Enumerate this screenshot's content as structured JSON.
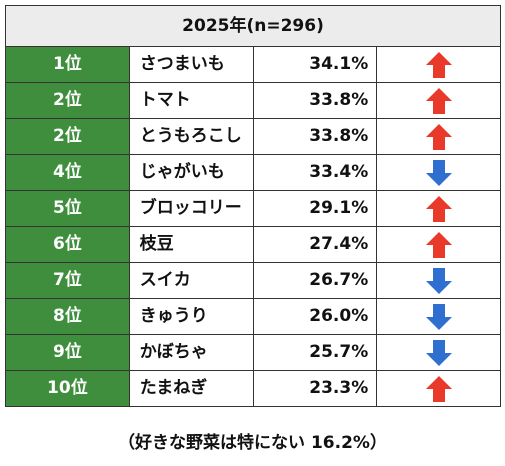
{
  "table": {
    "header": "2025年(n=296)",
    "rows": [
      {
        "rank": "1位",
        "name": "さつまいも",
        "percent": "34.1%",
        "trend": "up"
      },
      {
        "rank": "2位",
        "name": "トマト",
        "percent": "33.8%",
        "trend": "up"
      },
      {
        "rank": "2位",
        "name": "とうもろこし",
        "percent": "33.8%",
        "trend": "up"
      },
      {
        "rank": "4位",
        "name": "じゃがいも",
        "percent": "33.4%",
        "trend": "down"
      },
      {
        "rank": "5位",
        "name": "ブロッコリー",
        "percent": "29.1%",
        "trend": "up"
      },
      {
        "rank": "6位",
        "name": "枝豆",
        "percent": "27.4%",
        "trend": "up"
      },
      {
        "rank": "7位",
        "name": "スイカ",
        "percent": "26.7%",
        "trend": "down"
      },
      {
        "rank": "8位",
        "name": "きゅうり",
        "percent": "26.0%",
        "trend": "down"
      },
      {
        "rank": "9位",
        "name": "かぼちゃ",
        "percent": "25.7%",
        "trend": "down"
      },
      {
        "rank": "10位",
        "name": "たまねぎ",
        "percent": "23.3%",
        "trend": "up"
      }
    ]
  },
  "footnote": "（好きな野菜は特にない 16.2%）",
  "colors": {
    "rank_bg": "#3e8e3e",
    "up_arrow": "#e8392b",
    "down_arrow": "#2f6fd0",
    "header_bg": "#ececec"
  },
  "icons": {
    "up": "arrow-up-icon",
    "down": "arrow-down-icon"
  }
}
